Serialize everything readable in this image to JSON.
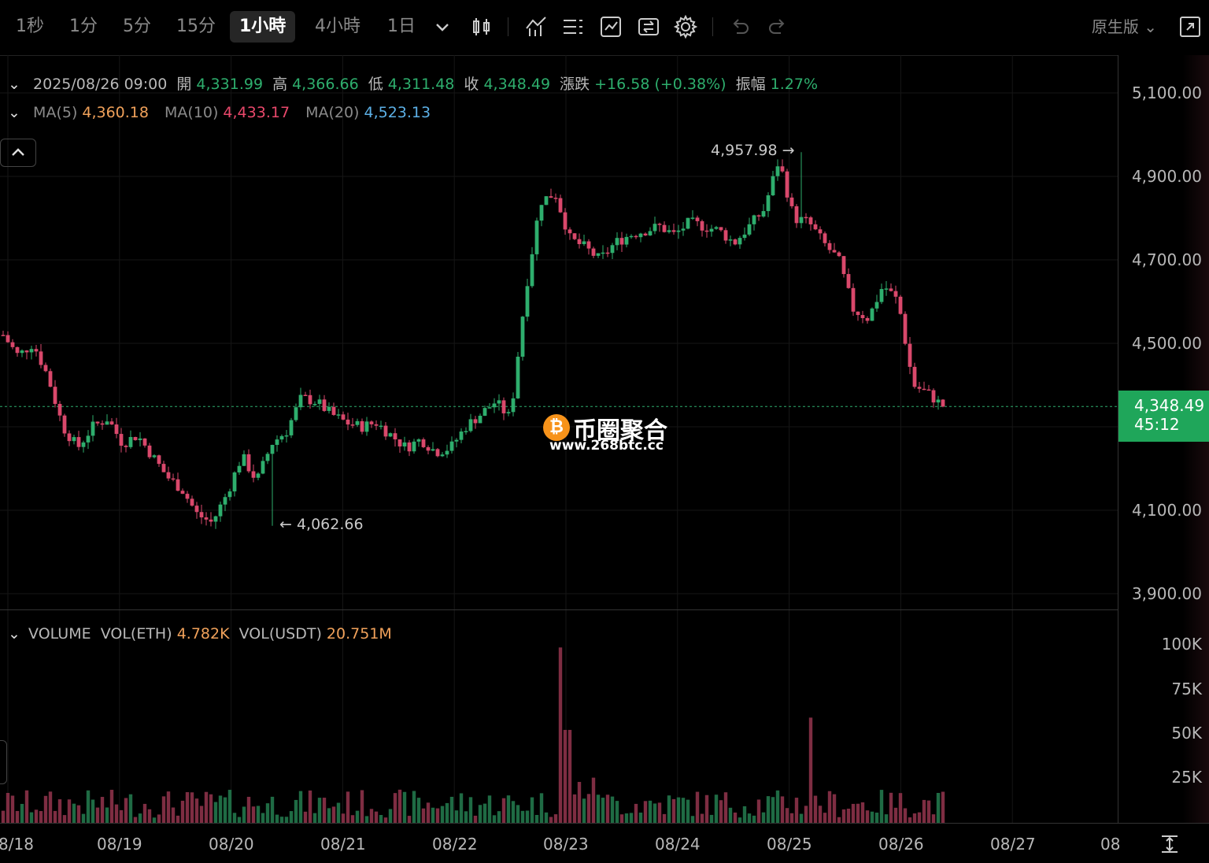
{
  "toolbar": {
    "timeframes": [
      "1秒",
      "1分",
      "5分",
      "15分",
      "1小時",
      "4小時",
      "1日"
    ],
    "active_timeframe": "1小時",
    "version_label": "原生版"
  },
  "ohlc": {
    "date": "2025/08/26 09:00",
    "open_label": "開",
    "open": "4,331.99",
    "high_label": "高",
    "high": "4,366.66",
    "low_label": "低",
    "low": "4,311.48",
    "close_label": "收",
    "close": "4,348.49",
    "change_label": "漲跌",
    "change": "+16.58 (+0.38%)",
    "amp_label": "振幅",
    "amp": "1.27%"
  },
  "ma": {
    "ma5_label": "MA(5)",
    "ma5": "4,360.18",
    "ma10_label": "MA(10)",
    "ma10": "4,433.17",
    "ma20_label": "MA(20)",
    "ma20": "4,523.13"
  },
  "volume": {
    "title": "VOLUME",
    "eth_label": "VOL(ETH)",
    "eth": "4.782K",
    "usdt_label": "VOL(USDT)",
    "usdt": "20.751M"
  },
  "annotations": {
    "high_mark": "4,957.98 →",
    "low_mark": "← 4,062.66"
  },
  "current": {
    "price": "4,348.49",
    "countdown": "45:12"
  },
  "watermark": {
    "title": "币圈聚合",
    "url": "www.268btc.cc",
    "coin": "₿"
  },
  "colors": {
    "up": "#2eae6d",
    "down": "#d9486b",
    "ma5": "#f0a15a",
    "ma10": "#e9486b",
    "ma20": "#5cb0e6"
  },
  "chart_data": {
    "type": "candlestick",
    "price_ticks": [
      "5,100.00",
      "4,900.00",
      "4,700.00",
      "4,500.00",
      "4,100.00",
      "3,900.00"
    ],
    "volume_ticks": [
      "100K",
      "75K",
      "50K",
      "25K"
    ],
    "date_ticks": [
      "8/18",
      "08/19",
      "08/20",
      "08/21",
      "08/22",
      "08/23",
      "08/24",
      "08/25",
      "08/26",
      "08/27",
      "08"
    ],
    "price_range": [
      3900,
      5100
    ],
    "volume_range": [
      0,
      110000
    ],
    "close_path": [
      4520,
      4470,
      4500,
      4420,
      4300,
      4250,
      4300,
      4320,
      4260,
      4280,
      4230,
      4180,
      4150,
      4090,
      4070,
      4140,
      4230,
      4170,
      4260,
      4290,
      4370,
      4360,
      4330,
      4310,
      4300,
      4310,
      4280,
      4250,
      4270,
      4240,
      4250,
      4300,
      4330,
      4360,
      4320,
      4620,
      4840,
      4860,
      4750,
      4730,
      4700,
      4740,
      4760,
      4770,
      4780,
      4760,
      4790,
      4780,
      4770,
      4740,
      4780,
      4820,
      4940,
      4800,
      4790,
      4740,
      4700,
      4580,
      4560,
      4640,
      4600,
      4400,
      4380,
      4348.49
    ],
    "high": 4957.98,
    "low": 4062.66,
    "current_price": 4348.49,
    "volume_spike": 100000,
    "volume_spike2": 60000,
    "volume_spike3": 45000
  }
}
